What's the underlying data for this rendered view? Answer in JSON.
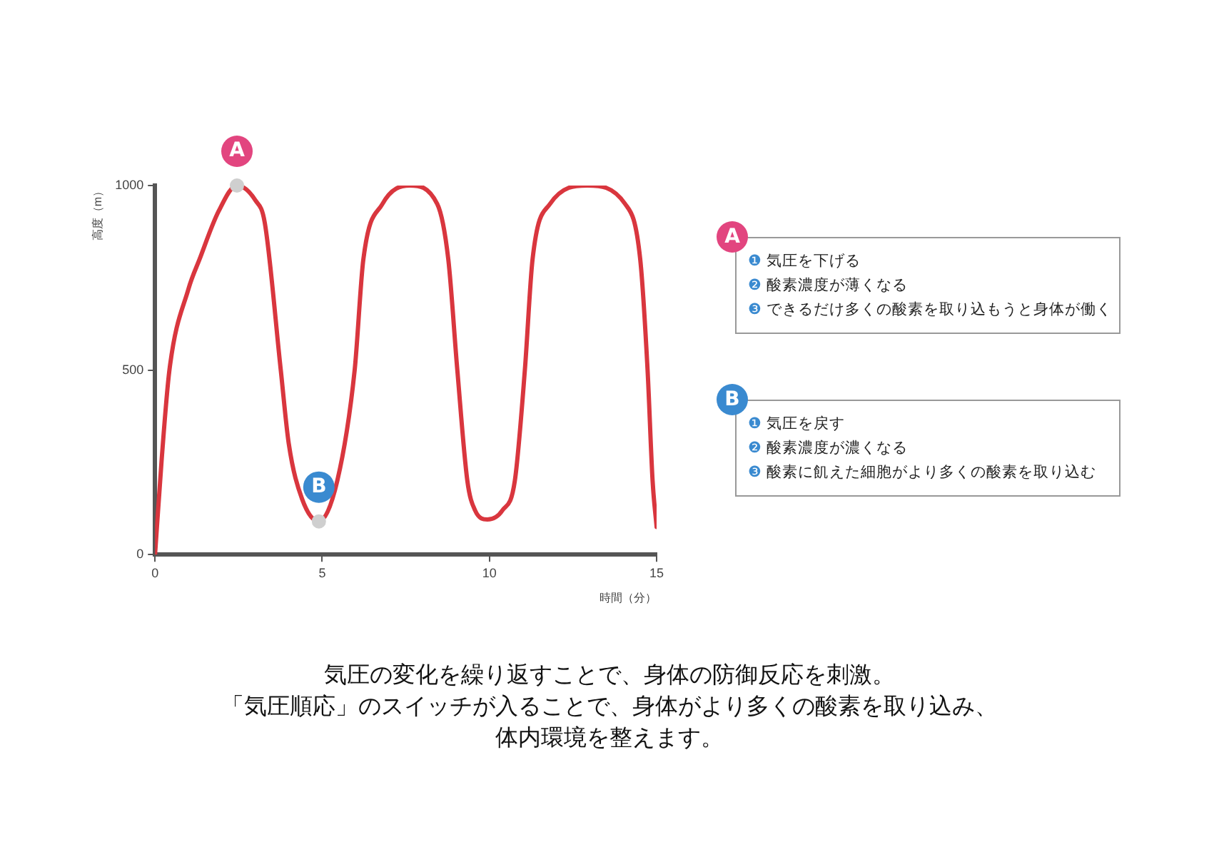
{
  "chart_data": {
    "type": "line",
    "xlabel": "時間（分）",
    "ylabel": "高度（m）",
    "xlim": [
      0,
      15
    ],
    "xticks": [
      0,
      5,
      10,
      15
    ],
    "ylim": [
      0,
      1000
    ],
    "yticks": [
      0,
      500,
      1000
    ],
    "grid": false,
    "legend": false,
    "marker": "none",
    "line_style": "solid",
    "series": [
      {
        "color": "#d9363e",
        "x": [
          0,
          0.2,
          0.43,
          1.0,
          1.33,
          1.9,
          2.45,
          3.0,
          3.28,
          3.76,
          4.0,
          4.4,
          4.9,
          5.45,
          5.97,
          6.23,
          6.8,
          7.62,
          8.44,
          8.77,
          9.04,
          9.34,
          9.57,
          9.94,
          10.39,
          10.76,
          11.06,
          11.29,
          11.81,
          12.93,
          14.06,
          14.51,
          14.73,
          14.88,
          15
        ],
        "values": [
          0,
          260,
          500,
          720,
          800,
          930,
          1000,
          960,
          900,
          500,
          300,
          150,
          90,
          200,
          500,
          800,
          950,
          1000,
          950,
          800,
          500,
          200,
          120,
          95,
          120,
          200,
          500,
          800,
          950,
          1000,
          950,
          800,
          500,
          200,
          75
        ]
      }
    ],
    "annotations": [
      {
        "text": "A",
        "x": 2.45,
        "y": 1000
      },
      {
        "text": "B",
        "x": 4.9,
        "y": 90
      },
      "❶ 気圧を下げる",
      "❷ 酸素濃度が薄くなる",
      "❸ できるだけ多くの酸素を取り込もうと身体が働く",
      "❶ 気圧を戻す",
      "❷ 酸素濃度が濃くなる",
      "❸ 酸素に飢えた細胞がより多くの酸素を取り込む",
      "気圧の変化を繰り返すことで、身体の防御反応を刺激。",
      "「気圧順応」のスイッチが入ることで、身体がより多くの酸素を取り込み、",
      "体内環境を整えます。"
    ]
  }
}
